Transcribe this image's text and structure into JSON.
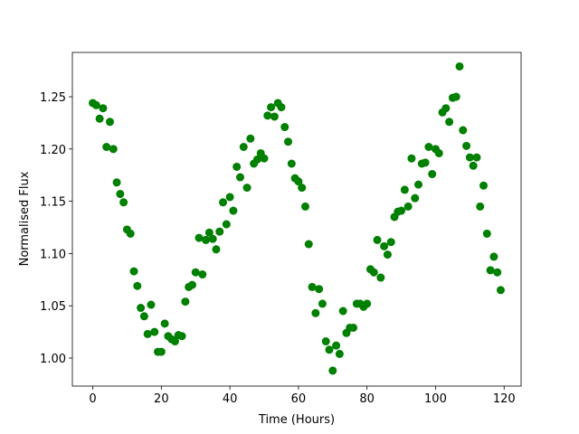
{
  "chart_data": {
    "type": "scatter",
    "x_label": "Time (Hours)",
    "y_label": "Normalised Flux",
    "color": "#008000",
    "x": [
      0,
      1,
      2,
      3,
      4,
      5,
      6,
      7,
      8,
      9,
      10,
      11,
      12,
      13,
      14,
      15,
      16,
      17,
      18,
      19,
      20,
      21,
      22,
      23,
      24,
      25,
      26,
      27,
      28,
      29,
      30,
      31,
      32,
      33,
      34,
      35,
      36,
      37,
      38,
      39,
      40,
      41,
      42,
      43,
      44,
      45,
      46,
      47,
      48,
      49,
      50,
      51,
      52,
      53,
      54,
      55,
      56,
      57,
      58,
      59,
      60,
      61,
      62,
      63,
      64,
      65,
      66,
      67,
      68,
      69,
      70,
      71,
      72,
      73,
      74,
      75,
      76,
      77,
      78,
      79,
      80,
      81,
      82,
      83,
      84,
      85,
      86,
      87,
      88,
      89,
      90,
      91,
      92,
      93,
      94,
      95,
      96,
      97,
      98,
      99,
      100,
      101,
      102,
      103,
      104,
      105,
      106,
      107,
      108,
      109,
      110,
      111,
      112,
      113,
      114,
      115,
      116,
      117,
      118,
      119
    ],
    "values": [
      1.244,
      1.242,
      1.229,
      1.239,
      1.202,
      1.226,
      1.2,
      1.168,
      1.157,
      1.149,
      1.123,
      1.119,
      1.083,
      1.069,
      1.048,
      1.04,
      1.023,
      1.051,
      1.025,
      1.006,
      1.006,
      1.033,
      1.021,
      1.018,
      1.016,
      1.022,
      1.021,
      1.054,
      1.068,
      1.07,
      1.082,
      1.115,
      1.08,
      1.113,
      1.12,
      1.114,
      1.104,
      1.121,
      1.149,
      1.128,
      1.154,
      1.141,
      1.183,
      1.173,
      1.202,
      1.163,
      1.21,
      1.186,
      1.19,
      1.196,
      1.191,
      1.232,
      1.24,
      1.231,
      1.244,
      1.24,
      1.221,
      1.207,
      1.186,
      1.172,
      1.169,
      1.163,
      1.145,
      1.109,
      1.068,
      1.043,
      1.066,
      1.052,
      1.016,
      1.008,
      0.988,
      1.012,
      1.004,
      1.045,
      1.024,
      1.029,
      1.029,
      1.052,
      1.052,
      1.049,
      1.052,
      1.085,
      1.082,
      1.113,
      1.077,
      1.107,
      1.099,
      1.111,
      1.135,
      1.14,
      1.141,
      1.161,
      1.145,
      1.191,
      1.153,
      1.166,
      1.186,
      1.187,
      1.202,
      1.176,
      1.2,
      1.196,
      1.235,
      1.239,
      1.226,
      1.249,
      1.25,
      1.279,
      1.218,
      1.203,
      1.192,
      1.184,
      1.192,
      1.145,
      1.165,
      1.119,
      1.084,
      1.097,
      1.082,
      1.065
    ],
    "xlim": [
      -5.95,
      124.95
    ],
    "ylim": [
      0.9732,
      1.2924
    ],
    "xticks": [
      0,
      20,
      40,
      60,
      80,
      100,
      120
    ],
    "yticks": [
      {
        "value": 1,
        "label": "1.00"
      },
      1.05,
      {
        "value": 1.1,
        "label": "1.10"
      },
      1.15,
      {
        "value": 1.2,
        "label": "1.20"
      },
      1.25
    ]
  }
}
